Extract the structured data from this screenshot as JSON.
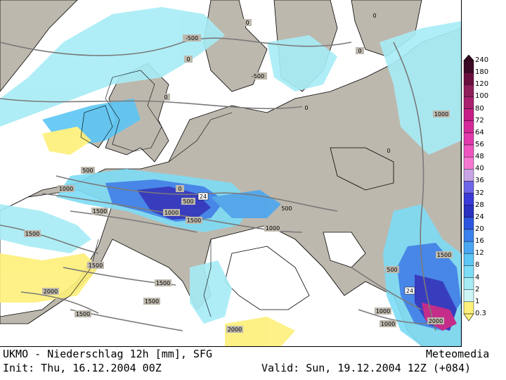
{
  "footer": {
    "title": "UKMO - Niederschlag 12h [mm], SFG",
    "brand": "Meteomedia",
    "init": "Init: Thu, 16.12.2004 00Z",
    "valid": "Valid: Sun, 19.12.2004 12Z (+084)"
  },
  "legend": {
    "levels": [
      "240",
      "180",
      "120",
      "100",
      "80",
      "72",
      "64",
      "56",
      "48",
      "40",
      "36",
      "32",
      "28",
      "24",
      "20",
      "16",
      "12",
      "8",
      "4",
      "2",
      "1",
      "0.3"
    ],
    "colors": [
      "#3b0a24",
      "#6b0f3e",
      "#8f1f5a",
      "#a8206e",
      "#c51e86",
      "#d42a9a",
      "#e23aad",
      "#ee55c0",
      "#f578d0",
      "#c8a4e6",
      "#6e66e8",
      "#3a3ad8",
      "#2a30c0",
      "#2c55e0",
      "#3c82ee",
      "#4aa6f0",
      "#5cc6f4",
      "#7ddcf6",
      "#a6ecf6",
      "#ccf6f6",
      "#fdf07a"
    ]
  },
  "isobars": [
    "-500",
    "-500",
    "0",
    "0",
    "0",
    "0",
    "0",
    "0",
    "0",
    "0",
    "500",
    "500",
    "500",
    "500",
    "1000",
    "1000",
    "1000",
    "1000",
    "1000",
    "1000",
    "1500",
    "1500",
    "1500",
    "1500",
    "1500",
    "1500",
    "1500",
    "1500",
    "2000",
    "2000",
    "2000",
    "24",
    "24"
  ],
  "colors": {
    "land": "#bdb8ad",
    "sea_dry": "#ffffff",
    "coast": "#000000",
    "isoline": "#7a7a7a"
  }
}
